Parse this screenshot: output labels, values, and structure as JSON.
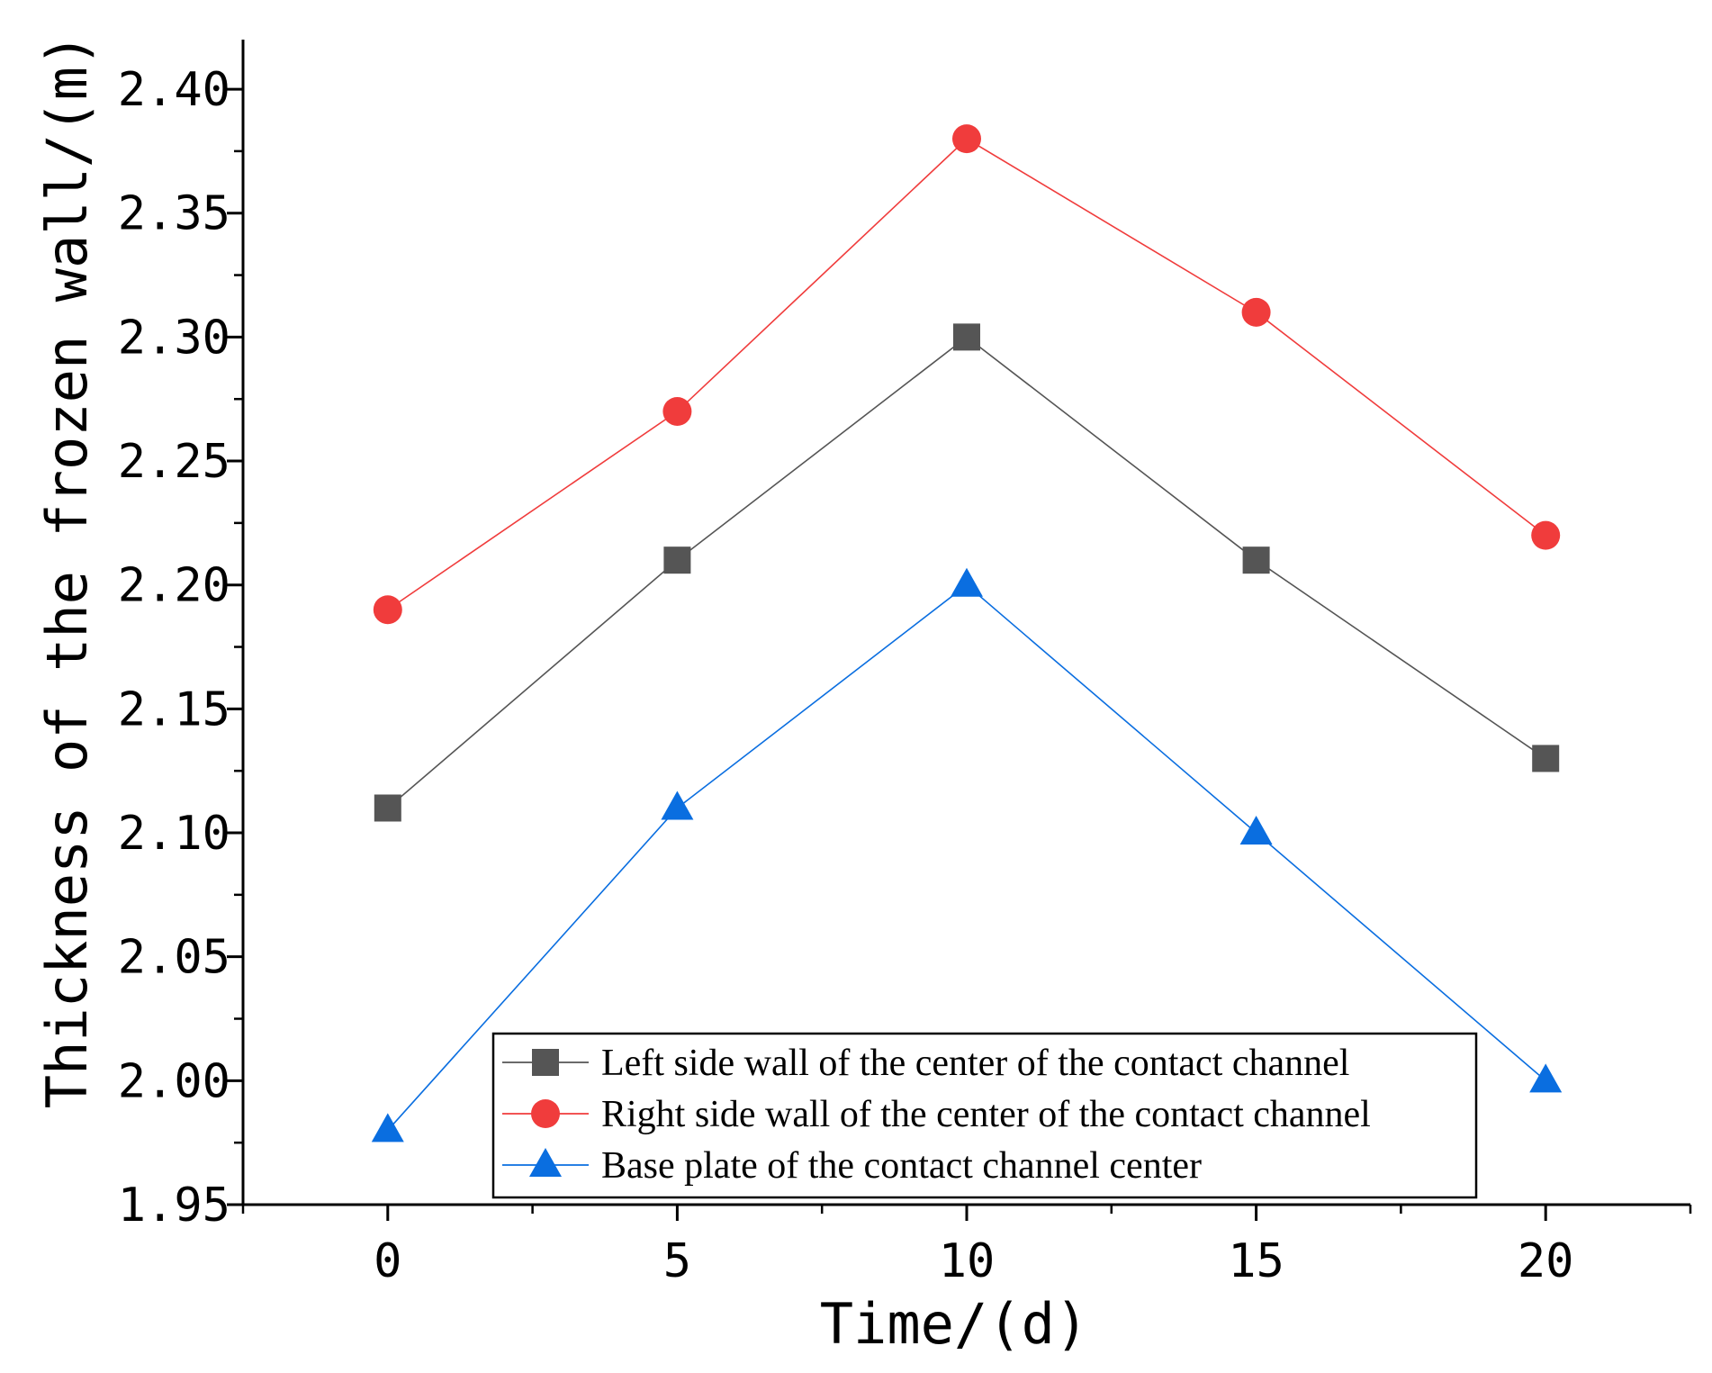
{
  "chart_data": {
    "type": "line",
    "x": [
      0,
      5,
      10,
      15,
      20
    ],
    "xlabel": "Time/(d)",
    "ylabel": "Thickness of the frozen wall/(m)",
    "xlim": [
      -2.5,
      22.5
    ],
    "ylim": [
      1.95,
      2.42
    ],
    "xticks": [
      0,
      5,
      10,
      15,
      20
    ],
    "xtick_labels": [
      "0",
      "5",
      "10",
      "15",
      "20"
    ],
    "yticks": [
      1.95,
      2.0,
      2.05,
      2.1,
      2.15,
      2.2,
      2.25,
      2.3,
      2.35,
      2.4
    ],
    "ytick_labels": [
      "1.95",
      "2.00",
      "2.05",
      "2.10",
      "2.15",
      "2.20",
      "2.25",
      "2.30",
      "2.35",
      "2.40"
    ],
    "grid": false,
    "legend_position": "bottom-center",
    "series": [
      {
        "name": "Left side wall of the center of the contact channel",
        "marker": "square",
        "color": "#555555",
        "values": [
          2.11,
          2.21,
          2.3,
          2.21,
          2.13
        ]
      },
      {
        "name": "Right side wall of the center of the contact channel",
        "marker": "circle",
        "color": "#f03c3c",
        "values": [
          2.19,
          2.27,
          2.38,
          2.31,
          2.22
        ]
      },
      {
        "name": "Base plate of the contact channel center",
        "marker": "triangle",
        "color": "#0a6ee0",
        "values": [
          1.98,
          2.11,
          2.2,
          2.1,
          2.0
        ]
      }
    ]
  }
}
